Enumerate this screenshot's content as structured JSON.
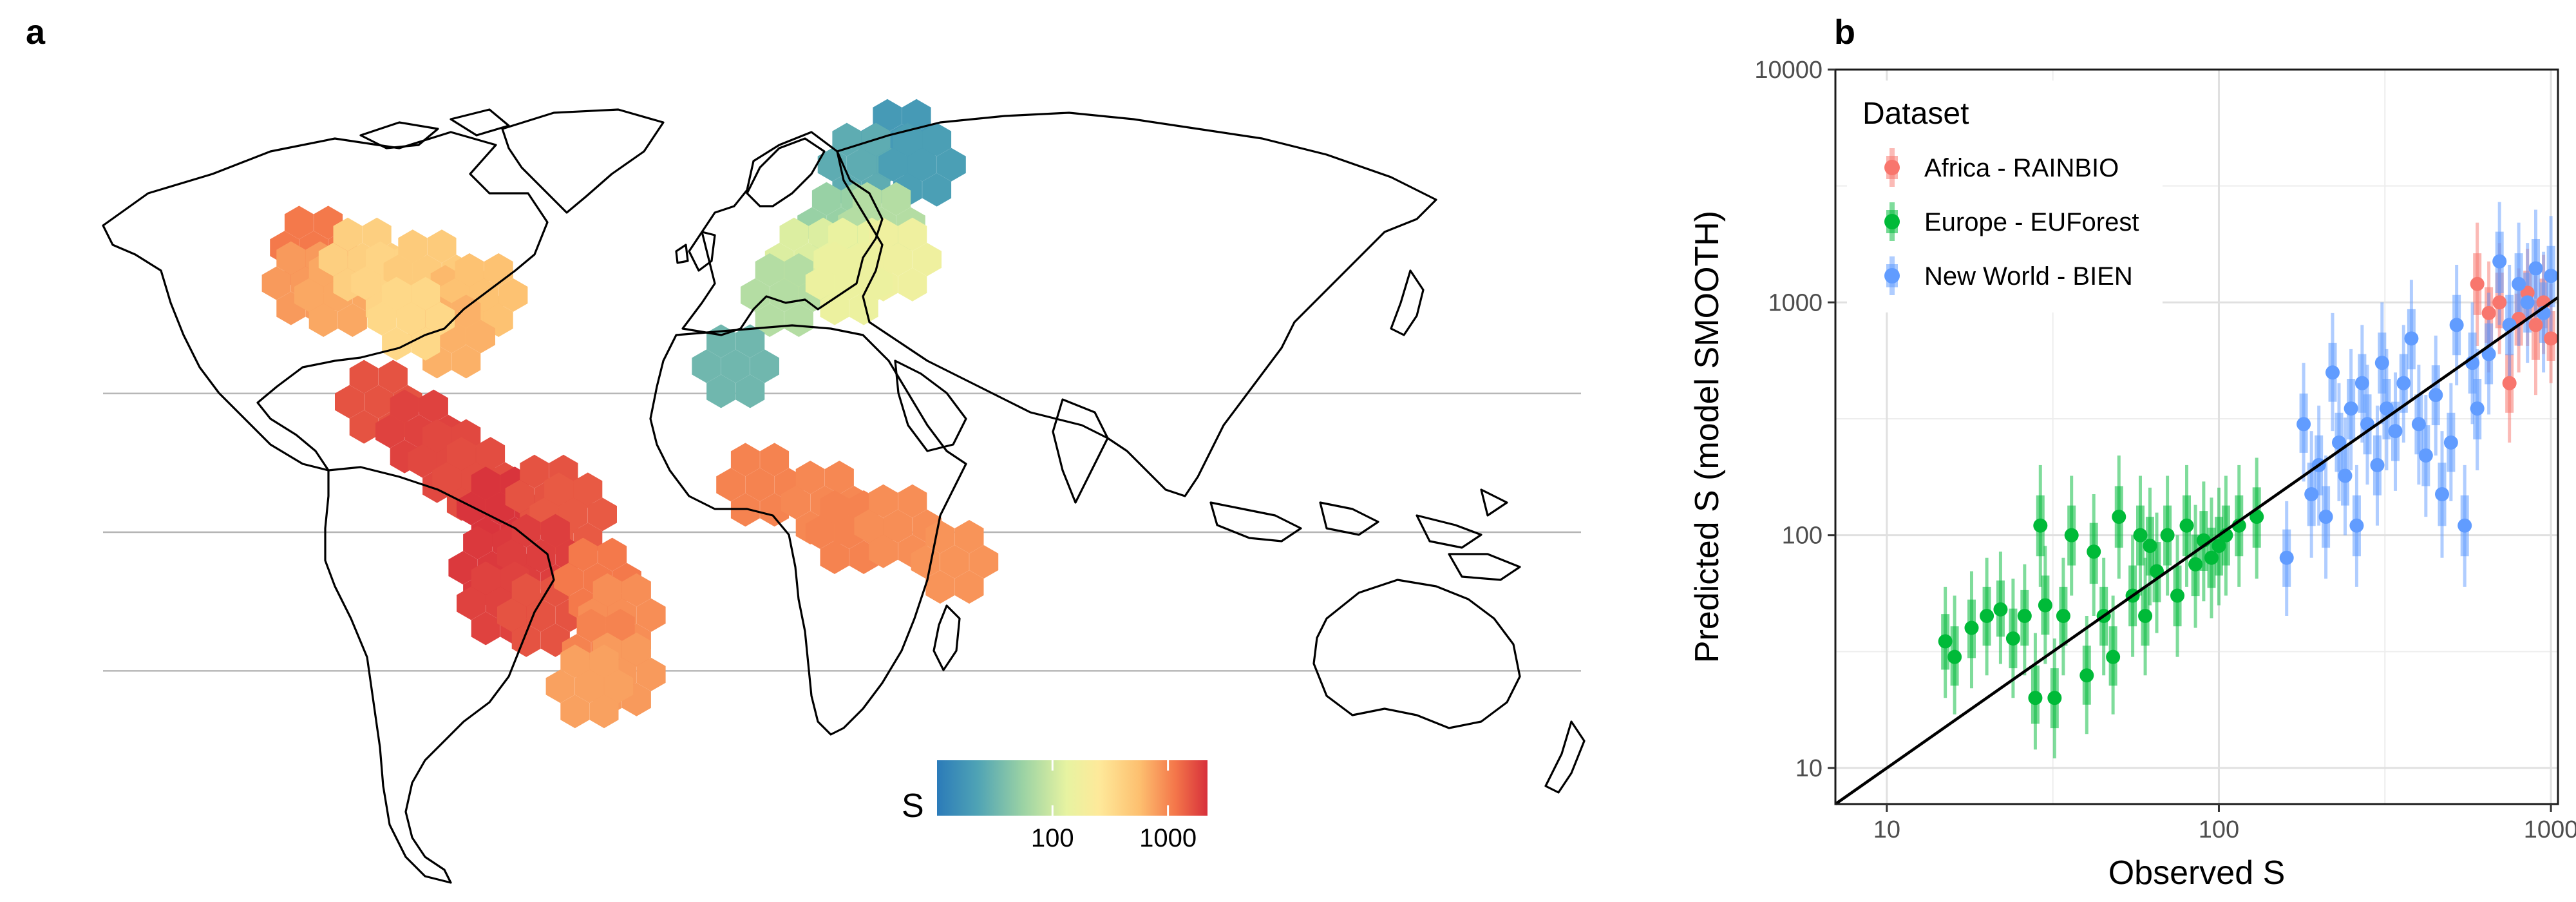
{
  "figure": {
    "panel_a_label": "a",
    "panel_b_label": "b"
  },
  "map": {
    "colorbar": {
      "title": "S",
      "ticks": [
        "100",
        "1000"
      ],
      "tick_values": [
        100,
        1000
      ],
      "range": [
        10,
        2200
      ],
      "palette": [
        "#2b7bb9",
        "#4fa3b5",
        "#9cd3a4",
        "#e7f3a1",
        "#fee99a",
        "#fdbf6f",
        "#f4774a",
        "#d7303b"
      ]
    },
    "latitude_lines_deg": [
      23.4,
      0,
      -23.4
    ],
    "cells": [
      {
        "region": "North America",
        "lon": -120,
        "lat": 48,
        "S": 1000
      },
      {
        "region": "North America",
        "lon": -122,
        "lat": 42,
        "S": 700
      },
      {
        "region": "North America",
        "lon": -114,
        "lat": 40,
        "S": 600
      },
      {
        "region": "North America",
        "lon": -108,
        "lat": 46,
        "S": 350
      },
      {
        "region": "North America",
        "lon": -100,
        "lat": 42,
        "S": 320
      },
      {
        "region": "North America",
        "lon": -92,
        "lat": 44,
        "S": 380
      },
      {
        "region": "North America",
        "lon": -84,
        "lat": 38,
        "S": 500
      },
      {
        "region": "North America",
        "lon": -78,
        "lat": 40,
        "S": 450
      },
      {
        "region": "North America",
        "lon": -86,
        "lat": 33,
        "S": 550
      },
      {
        "region": "North America",
        "lon": -96,
        "lat": 36,
        "S": 300
      },
      {
        "region": "Europe",
        "lon": 25,
        "lat": 66,
        "S": 18
      },
      {
        "region": "Europe",
        "lon": 15,
        "lat": 62,
        "S": 25
      },
      {
        "region": "Europe",
        "lon": 30,
        "lat": 62,
        "S": 20
      },
      {
        "region": "Europe",
        "lon": 10,
        "lat": 52,
        "S": 45
      },
      {
        "region": "Europe",
        "lon": 20,
        "lat": 52,
        "S": 60
      },
      {
        "region": "Europe",
        "lon": 2,
        "lat": 46,
        "S": 90
      },
      {
        "region": "Europe",
        "lon": 14,
        "lat": 46,
        "S": 110
      },
      {
        "region": "Europe",
        "lon": 24,
        "lat": 46,
        "S": 130
      },
      {
        "region": "Europe",
        "lon": -4,
        "lat": 40,
        "S": 60
      },
      {
        "region": "Europe",
        "lon": 12,
        "lat": 42,
        "S": 120
      },
      {
        "region": "Europe",
        "lon": -16,
        "lat": 28,
        "S": 30
      },
      {
        "region": "Central America",
        "lon": -104,
        "lat": 22,
        "S": 1500
      },
      {
        "region": "Central America",
        "lon": -94,
        "lat": 17,
        "S": 1800
      },
      {
        "region": "Central America",
        "lon": -86,
        "lat": 12,
        "S": 1700
      },
      {
        "region": "Central America",
        "lon": -80,
        "lat": 9,
        "S": 1600
      },
      {
        "region": "South America",
        "lon": -74,
        "lat": 4,
        "S": 2100
      },
      {
        "region": "South America",
        "lon": -62,
        "lat": 6,
        "S": 1500
      },
      {
        "region": "South America",
        "lon": -56,
        "lat": 3,
        "S": 1400
      },
      {
        "region": "South America",
        "lon": -76,
        "lat": -6,
        "S": 2000
      },
      {
        "region": "South America",
        "lon": -64,
        "lat": -4,
        "S": 1900
      },
      {
        "region": "South America",
        "lon": -74,
        "lat": -12,
        "S": 1800
      },
      {
        "region": "South America",
        "lon": -64,
        "lat": -14,
        "S": 1500
      },
      {
        "region": "South America",
        "lon": -50,
        "lat": -8,
        "S": 1000
      },
      {
        "region": "South America",
        "lon": -44,
        "lat": -14,
        "S": 800
      },
      {
        "region": "South America",
        "lon": -48,
        "lat": -20,
        "S": 900
      },
      {
        "region": "South America",
        "lon": -44,
        "lat": -24,
        "S": 700
      },
      {
        "region": "South America",
        "lon": -52,
        "lat": -26,
        "S": 650
      },
      {
        "region": "Africa",
        "lon": -10,
        "lat": 8,
        "S": 900
      },
      {
        "region": "Africa",
        "lon": 6,
        "lat": 5,
        "S": 850
      },
      {
        "region": "Africa",
        "lon": 12,
        "lat": 0,
        "S": 900
      },
      {
        "region": "Africa",
        "lon": 24,
        "lat": 1,
        "S": 800
      },
      {
        "region": "Africa",
        "lon": 38,
        "lat": -5,
        "S": 750
      }
    ]
  },
  "chart_data": {
    "type": "scatter",
    "title": "",
    "xlabel": "Observed S",
    "ylabel": "Predicted S (model SMOOTH)",
    "x_scale": "log10",
    "y_scale": "log10",
    "xlim": [
      7,
      1050
    ],
    "ylim": [
      7,
      10000
    ],
    "x_ticks": [
      "10",
      "100",
      "1000"
    ],
    "x_tick_values": [
      10,
      100,
      1000
    ],
    "y_ticks": [
      "10",
      "100",
      "1000",
      "10000"
    ],
    "y_tick_values": [
      10,
      100,
      1000,
      10000
    ],
    "reference_line": "y = x",
    "legend": {
      "title": "Dataset",
      "position": "top-left"
    },
    "series": [
      {
        "name": "Africa - RAINBIO",
        "color": "#f8766d",
        "points": [
          {
            "x": 600,
            "y": 1200,
            "lo": 650,
            "hi": 2200
          },
          {
            "x": 650,
            "y": 900,
            "lo": 500,
            "hi": 1500
          },
          {
            "x": 700,
            "y": 1000,
            "lo": 600,
            "hi": 1800
          },
          {
            "x": 750,
            "y": 450,
            "lo": 250,
            "hi": 800
          },
          {
            "x": 800,
            "y": 850,
            "lo": 500,
            "hi": 1400
          },
          {
            "x": 850,
            "y": 1100,
            "lo": 650,
            "hi": 1700
          },
          {
            "x": 900,
            "y": 800,
            "lo": 400,
            "hi": 1300
          },
          {
            "x": 950,
            "y": 1000,
            "lo": 600,
            "hi": 1600
          },
          {
            "x": 1000,
            "y": 700,
            "lo": 450,
            "hi": 1200
          }
        ]
      },
      {
        "name": "Europe - EUForest",
        "color": "#00ba38",
        "points": [
          {
            "x": 15,
            "y": 35,
            "lo": 20,
            "hi": 60
          },
          {
            "x": 16,
            "y": 30,
            "lo": 17,
            "hi": 55
          },
          {
            "x": 18,
            "y": 40,
            "lo": 22,
            "hi": 70
          },
          {
            "x": 20,
            "y": 45,
            "lo": 25,
            "hi": 80
          },
          {
            "x": 22,
            "y": 48,
            "lo": 28,
            "hi": 85
          },
          {
            "x": 24,
            "y": 36,
            "lo": 20,
            "hi": 65
          },
          {
            "x": 26,
            "y": 45,
            "lo": 25,
            "hi": 75
          },
          {
            "x": 28,
            "y": 20,
            "lo": 12,
            "hi": 38
          },
          {
            "x": 29,
            "y": 110,
            "lo": 60,
            "hi": 200
          },
          {
            "x": 30,
            "y": 50,
            "lo": 28,
            "hi": 90
          },
          {
            "x": 32,
            "y": 20,
            "lo": 11,
            "hi": 36
          },
          {
            "x": 34,
            "y": 45,
            "lo": 25,
            "hi": 80
          },
          {
            "x": 36,
            "y": 100,
            "lo": 55,
            "hi": 180
          },
          {
            "x": 40,
            "y": 25,
            "lo": 14,
            "hi": 45
          },
          {
            "x": 42,
            "y": 85,
            "lo": 45,
            "hi": 150
          },
          {
            "x": 45,
            "y": 45,
            "lo": 25,
            "hi": 80
          },
          {
            "x": 48,
            "y": 30,
            "lo": 17,
            "hi": 55
          },
          {
            "x": 50,
            "y": 120,
            "lo": 65,
            "hi": 220
          },
          {
            "x": 55,
            "y": 55,
            "lo": 30,
            "hi": 100
          },
          {
            "x": 58,
            "y": 100,
            "lo": 55,
            "hi": 180
          },
          {
            "x": 60,
            "y": 45,
            "lo": 25,
            "hi": 80
          },
          {
            "x": 62,
            "y": 90,
            "lo": 50,
            "hi": 160
          },
          {
            "x": 65,
            "y": 70,
            "lo": 38,
            "hi": 125
          },
          {
            "x": 70,
            "y": 100,
            "lo": 55,
            "hi": 180
          },
          {
            "x": 75,
            "y": 55,
            "lo": 30,
            "hi": 100
          },
          {
            "x": 80,
            "y": 110,
            "lo": 60,
            "hi": 200
          },
          {
            "x": 85,
            "y": 75,
            "lo": 40,
            "hi": 135
          },
          {
            "x": 90,
            "y": 95,
            "lo": 52,
            "hi": 170
          },
          {
            "x": 95,
            "y": 80,
            "lo": 44,
            "hi": 145
          },
          {
            "x": 100,
            "y": 90,
            "lo": 50,
            "hi": 160
          },
          {
            "x": 105,
            "y": 100,
            "lo": 55,
            "hi": 180
          },
          {
            "x": 115,
            "y": 110,
            "lo": 60,
            "hi": 200
          },
          {
            "x": 130,
            "y": 120,
            "lo": 65,
            "hi": 215
          }
        ]
      },
      {
        "name": "New World - BIEN",
        "color": "#619cff",
        "points": [
          {
            "x": 160,
            "y": 80,
            "lo": 45,
            "hi": 140
          },
          {
            "x": 180,
            "y": 300,
            "lo": 170,
            "hi": 550
          },
          {
            "x": 190,
            "y": 150,
            "lo": 80,
            "hi": 280
          },
          {
            "x": 200,
            "y": 200,
            "lo": 110,
            "hi": 360
          },
          {
            "x": 210,
            "y": 120,
            "lo": 65,
            "hi": 220
          },
          {
            "x": 220,
            "y": 500,
            "lo": 280,
            "hi": 900
          },
          {
            "x": 230,
            "y": 250,
            "lo": 140,
            "hi": 450
          },
          {
            "x": 240,
            "y": 180,
            "lo": 100,
            "hi": 320
          },
          {
            "x": 250,
            "y": 350,
            "lo": 190,
            "hi": 630
          },
          {
            "x": 260,
            "y": 110,
            "lo": 60,
            "hi": 200
          },
          {
            "x": 270,
            "y": 450,
            "lo": 250,
            "hi": 800
          },
          {
            "x": 280,
            "y": 300,
            "lo": 165,
            "hi": 540
          },
          {
            "x": 300,
            "y": 200,
            "lo": 110,
            "hi": 360
          },
          {
            "x": 310,
            "y": 550,
            "lo": 300,
            "hi": 1000
          },
          {
            "x": 320,
            "y": 350,
            "lo": 190,
            "hi": 630
          },
          {
            "x": 340,
            "y": 280,
            "lo": 155,
            "hi": 500
          },
          {
            "x": 360,
            "y": 450,
            "lo": 250,
            "hi": 800
          },
          {
            "x": 380,
            "y": 700,
            "lo": 380,
            "hi": 1250
          },
          {
            "x": 400,
            "y": 300,
            "lo": 165,
            "hi": 540
          },
          {
            "x": 420,
            "y": 220,
            "lo": 120,
            "hi": 400
          },
          {
            "x": 450,
            "y": 400,
            "lo": 220,
            "hi": 720
          },
          {
            "x": 470,
            "y": 150,
            "lo": 80,
            "hi": 280
          },
          {
            "x": 500,
            "y": 250,
            "lo": 140,
            "hi": 450
          },
          {
            "x": 520,
            "y": 800,
            "lo": 440,
            "hi": 1450
          },
          {
            "x": 550,
            "y": 110,
            "lo": 60,
            "hi": 200
          },
          {
            "x": 580,
            "y": 550,
            "lo": 300,
            "hi": 1000
          },
          {
            "x": 600,
            "y": 350,
            "lo": 190,
            "hi": 630
          },
          {
            "x": 650,
            "y": 600,
            "lo": 330,
            "hi": 1100
          },
          {
            "x": 700,
            "y": 1500,
            "lo": 800,
            "hi": 2700
          },
          {
            "x": 750,
            "y": 800,
            "lo": 440,
            "hi": 1450
          },
          {
            "x": 800,
            "y": 1200,
            "lo": 650,
            "hi": 2200
          },
          {
            "x": 850,
            "y": 1000,
            "lo": 550,
            "hi": 1800
          },
          {
            "x": 900,
            "y": 1400,
            "lo": 770,
            "hi": 2500
          },
          {
            "x": 950,
            "y": 900,
            "lo": 500,
            "hi": 1650
          },
          {
            "x": 1000,
            "y": 1300,
            "lo": 700,
            "hi": 2350
          }
        ]
      }
    ]
  }
}
